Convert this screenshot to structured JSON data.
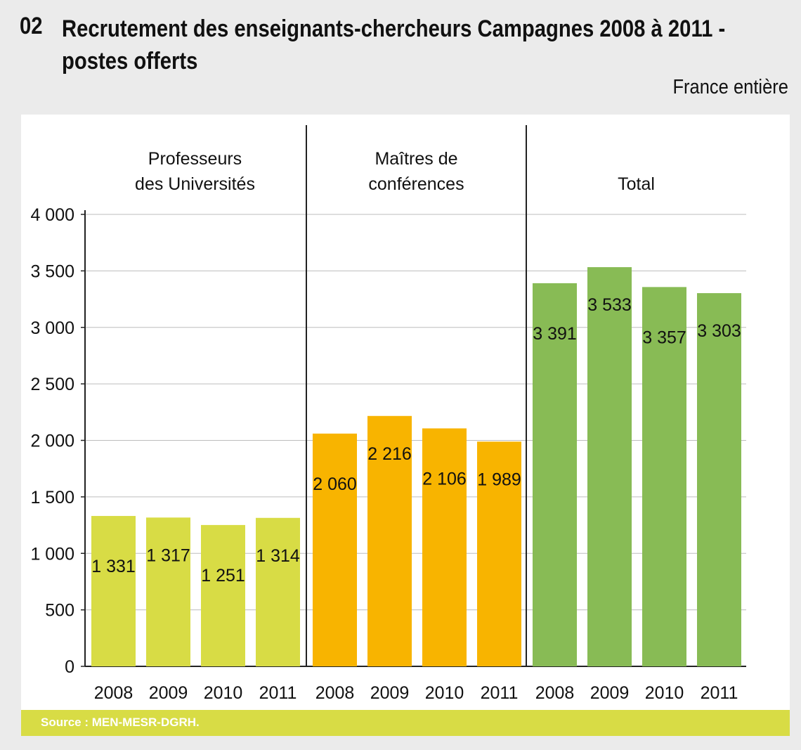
{
  "header": {
    "number": "02",
    "title_line1": "Recrutement des enseignants-chercheurs Campagnes 2008 à 2011 -",
    "title_line2": "postes offerts",
    "scope": "France entière"
  },
  "source": "Source : MEN-MESR-DGRH.",
  "colors": {
    "Professeurs des Universités": "#d8dc45",
    "Maîtres de conférences": "#f8b400",
    "Total": "#88bb55"
  },
  "chart_data": {
    "type": "bar",
    "title": "Recrutement des enseignants-chercheurs Campagnes 2008 à 2011 - postes offerts",
    "xlabel": "",
    "ylabel": "",
    "ylim": [
      0,
      4000
    ],
    "yticks": [
      0,
      500,
      1000,
      1500,
      2000,
      2500,
      3000,
      3500,
      4000
    ],
    "ytick_labels": [
      "0",
      "500",
      "1 000",
      "1 500",
      "2 000",
      "2 500",
      "3 000",
      "3 500",
      "4 000"
    ],
    "categories": [
      "2008",
      "2009",
      "2010",
      "2011"
    ],
    "grid": true,
    "series": [
      {
        "name": "Professeurs des Universités",
        "label_lines": [
          "Professeurs",
          "des Universités"
        ],
        "values": [
          1331,
          1317,
          1251,
          1314
        ],
        "value_labels": [
          "1 331",
          "1 317",
          "1 251",
          "1 314"
        ]
      },
      {
        "name": "Maîtres de conférences",
        "label_lines": [
          "Maîtres de",
          "conférences"
        ],
        "values": [
          2060,
          2216,
          2106,
          1989
        ],
        "value_labels": [
          "2 060",
          "2 216",
          "2 106",
          "1 989"
        ]
      },
      {
        "name": "Total",
        "label_lines": [
          "Total"
        ],
        "values": [
          3391,
          3533,
          3357,
          3303
        ],
        "value_labels": [
          "3 391",
          "3 533",
          "3 357",
          "3 303"
        ]
      }
    ]
  }
}
